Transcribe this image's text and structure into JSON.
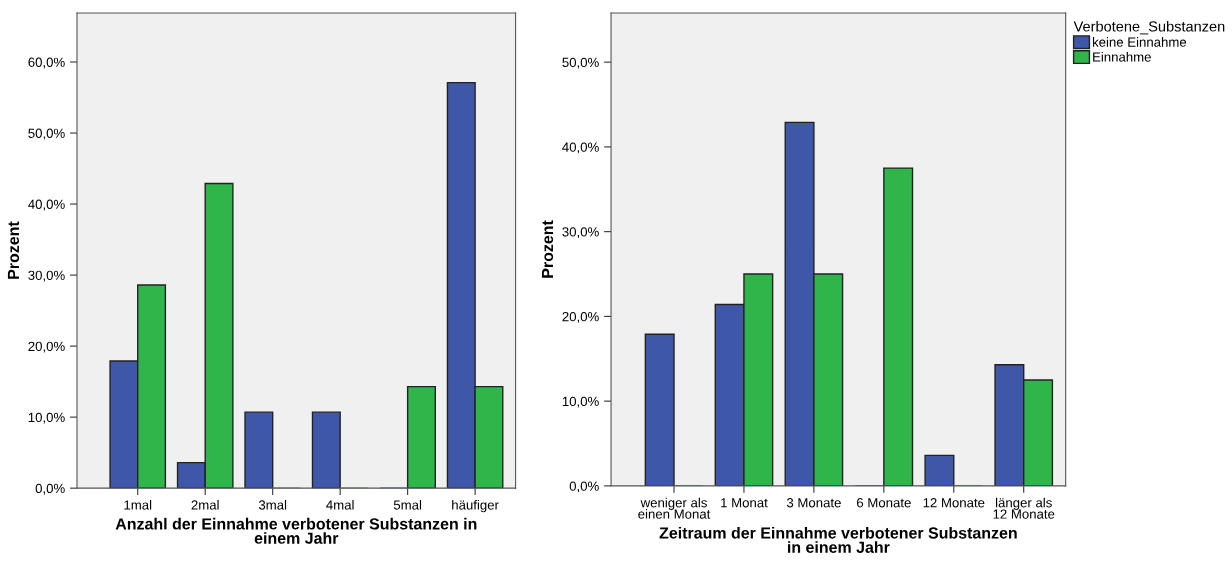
{
  "chart_data": [
    {
      "type": "bar",
      "xlabel": "Anzahl der Einnahme verbotener Substanzen in\neinem Jahr",
      "ylabel": "Prozent",
      "categories": [
        "1mal",
        "2mal",
        "3mal",
        "4mal",
        "5mal",
        "häufiger"
      ],
      "series": [
        {
          "color": "#3f57a9",
          "values": [
            17.9,
            3.6,
            10.7,
            10.7,
            0,
            57.1
          ]
        },
        {
          "color": "#2fb54a",
          "values": [
            28.6,
            42.9,
            0,
            0,
            14.3,
            14.3
          ]
        }
      ],
      "ylim": [
        0,
        66.9
      ],
      "yticks": [
        {
          "value": 0,
          "label": "0,0%"
        },
        {
          "value": 10,
          "label": "10,0%"
        },
        {
          "value": 20,
          "label": "20,0%"
        },
        {
          "value": 30,
          "label": "30,0%"
        },
        {
          "value": 40,
          "label": "40,0%"
        },
        {
          "value": 50,
          "label": "50,0%"
        },
        {
          "value": 60,
          "label": "60,0%"
        }
      ],
      "grid": false,
      "legend": false
    },
    {
      "type": "bar",
      "xlabel": "Zeitraum der Einnahme verbotener Substanzen\nin einem Jahr",
      "ylabel": "Prozent",
      "legend_title": "Verbotene_Substanzen",
      "categories": [
        "weniger als\neinen Monat",
        "1 Monat",
        "3 Monate",
        "6 Monate",
        "12 Monate",
        "länger als\n12 Monate"
      ],
      "series": [
        {
          "name": "keine Einnahme",
          "color": "#3f57a9",
          "values": [
            17.9,
            21.4,
            42.9,
            0,
            3.6,
            14.3
          ]
        },
        {
          "name": "Einnahme",
          "color": "#2fb54a",
          "values": [
            0,
            25,
            25,
            37.5,
            0,
            12.5
          ]
        }
      ],
      "ylim": [
        0,
        55.8
      ],
      "yticks": [
        {
          "value": 0,
          "label": "0,0%"
        },
        {
          "value": 10,
          "label": "10,0%"
        },
        {
          "value": 20,
          "label": "20,0%"
        },
        {
          "value": 30,
          "label": "30,0%"
        },
        {
          "value": 40,
          "label": "40,0%"
        },
        {
          "value": 50,
          "label": "50,0%"
        }
      ],
      "grid": false,
      "legend": "top right"
    }
  ]
}
